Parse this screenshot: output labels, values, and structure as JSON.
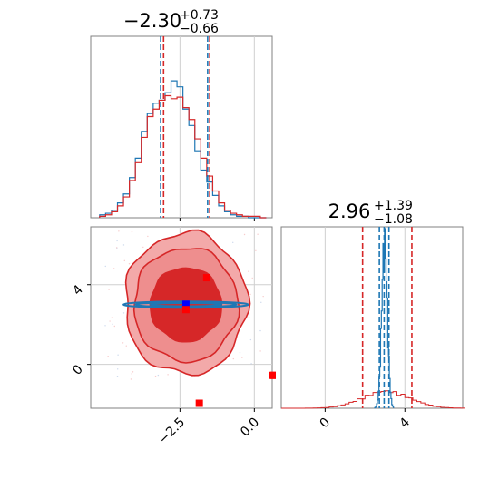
{
  "chart_data": {
    "type": "corner",
    "parameters": 2,
    "colors": {
      "blue": "#1f77b4",
      "red": "#d62728",
      "contour_light": "#f09a9a",
      "contour_dark": "#d62728",
      "grid": "#cfcfcf"
    },
    "param1": {
      "title": {
        "median": "−2.30",
        "plus": "+0.73",
        "minus": "−0.66"
      },
      "range": [
        -5.5,
        0.6
      ],
      "xticks": [
        {
          "value": -2.5,
          "label": "−2.5"
        },
        {
          "value": 0.0,
          "label": "0.0"
        }
      ],
      "quantile_lines": {
        "blue": [
          -3.15,
          -2.3,
          -1.57
        ],
        "red": [
          -3.05,
          -2.3,
          -1.5
        ]
      },
      "hist_x": [
        -5.1,
        -4.9,
        -4.7,
        -4.5,
        -4.3,
        -4.1,
        -3.9,
        -3.7,
        -3.5,
        -3.3,
        -3.1,
        -2.9,
        -2.7,
        -2.5,
        -2.3,
        -2.1,
        -1.9,
        -1.7,
        -1.5,
        -1.3,
        -1.1,
        -0.9,
        -0.7,
        -0.5,
        -0.3,
        -0.1,
        0.1,
        0.3
      ],
      "hist_blue": [
        0.02,
        0.03,
        0.05,
        0.1,
        0.16,
        0.27,
        0.4,
        0.58,
        0.7,
        0.77,
        0.79,
        0.84,
        0.92,
        0.88,
        0.73,
        0.62,
        0.45,
        0.32,
        0.24,
        0.15,
        0.08,
        0.04,
        0.02,
        0.01,
        0.01,
        0.0,
        0.0,
        0.0
      ],
      "hist_red": [
        0.01,
        0.02,
        0.04,
        0.08,
        0.14,
        0.25,
        0.37,
        0.54,
        0.68,
        0.73,
        0.79,
        0.82,
        0.8,
        0.81,
        0.74,
        0.66,
        0.53,
        0.4,
        0.28,
        0.18,
        0.1,
        0.05,
        0.03,
        0.02,
        0.01,
        0.01,
        0.01,
        0.0
      ]
    },
    "param2": {
      "title": {
        "median": "2.96",
        "plus": "+1.39",
        "minus": "−1.08"
      },
      "range": [
        -2.2,
        6.9
      ],
      "ticks": [
        {
          "value": 0,
          "label": "0"
        },
        {
          "value": 4,
          "label": "4"
        }
      ],
      "quantile_lines": {
        "blue": [
          2.72,
          2.96,
          3.2
        ],
        "red": [
          1.88,
          2.96,
          4.35
        ]
      },
      "hist_blue_peak": {
        "center": 2.96,
        "width": 0.14,
        "height": 0.88
      },
      "hist_red": {
        "center": 2.96,
        "width": 1.2,
        "height": 0.09
      }
    },
    "scatter_markers": [
      {
        "x": -2.3,
        "y": 3.02,
        "color": "blue",
        "shape": "square"
      },
      {
        "x": -1.6,
        "y": 4.35,
        "color": "red",
        "shape": "square"
      },
      {
        "x": -1.85,
        "y": -1.95,
        "color": "red",
        "shape": "square"
      },
      {
        "x": 0.6,
        "y": -0.55,
        "color": "red",
        "shape": "square"
      },
      {
        "x": -2.3,
        "y": 2.75,
        "color": "red",
        "shape": "square"
      }
    ]
  }
}
